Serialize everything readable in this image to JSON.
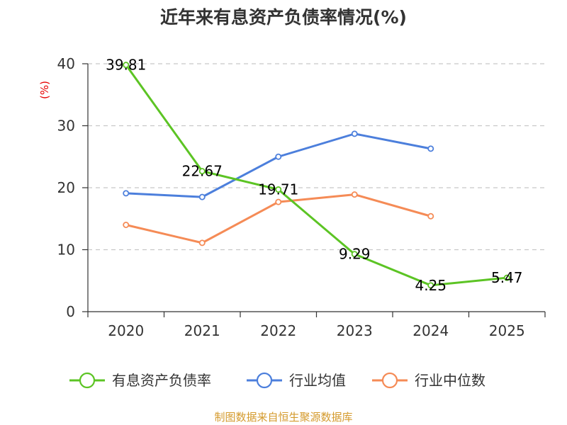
{
  "chart_data": {
    "type": "line",
    "title": "近年来有息资产负债率情况(%)",
    "unit_label": "(%)",
    "categories": [
      "2020",
      "2021",
      "2022",
      "2023",
      "2024",
      "2025"
    ],
    "yticks": [
      "0",
      "10",
      "20",
      "30",
      "40"
    ],
    "ylim": [
      0,
      40
    ],
    "grid": true,
    "series": [
      {
        "name": "有息资产负债率",
        "color": "#5cc424",
        "values": [
          39.81,
          22.67,
          19.71,
          9.29,
          4.25,
          5.47
        ],
        "labels": [
          "39.81",
          "22.67",
          "19.71",
          "9.29",
          "4.25",
          "5.47"
        ]
      },
      {
        "name": "行业均值",
        "color": "#4c7fdc",
        "values": [
          19.1,
          18.5,
          25.0,
          28.7,
          26.3,
          null
        ]
      },
      {
        "name": "行业中位数",
        "color": "#f58b56",
        "values": [
          14.0,
          11.1,
          17.7,
          18.9,
          15.4,
          null
        ]
      }
    ],
    "source": "制图数据来自恒生聚源数据库"
  }
}
